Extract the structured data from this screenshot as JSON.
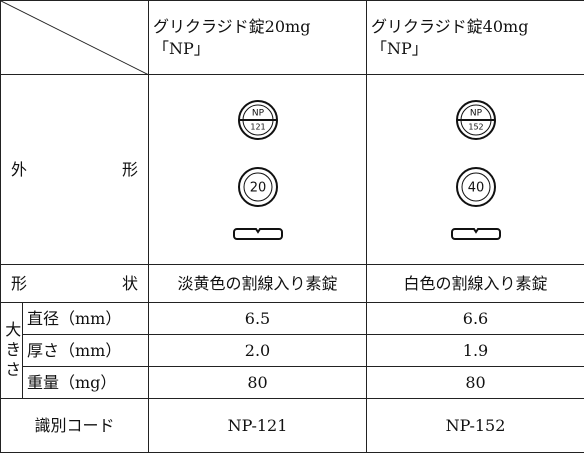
{
  "table": {
    "products": [
      {
        "name": "グリクラジド錠20mg",
        "suffix": "「NP」",
        "imprint_top": "NP",
        "imprint_code": "121",
        "imprint_face": "20",
        "shape": "淡黄色の割線入り素錠",
        "diameter": "6.5",
        "thickness": "2.0",
        "weight": "80",
        "id_code": "NP-121"
      },
      {
        "name": "グリクラジド錠40mg",
        "suffix": "「NP」",
        "imprint_top": "NP",
        "imprint_code": "152",
        "imprint_face": "40",
        "shape": "白色の割線入り素錠",
        "diameter": "6.6",
        "thickness": "1.9",
        "weight": "80",
        "id_code": "NP-152"
      }
    ],
    "labels": {
      "appearance": "外 形",
      "shape": "形 状",
      "size": "大きさ",
      "diameter": "直径（mm）",
      "thickness": "厚さ（mm）",
      "weight": "重量（mg）",
      "id_code": "識別コード"
    }
  }
}
